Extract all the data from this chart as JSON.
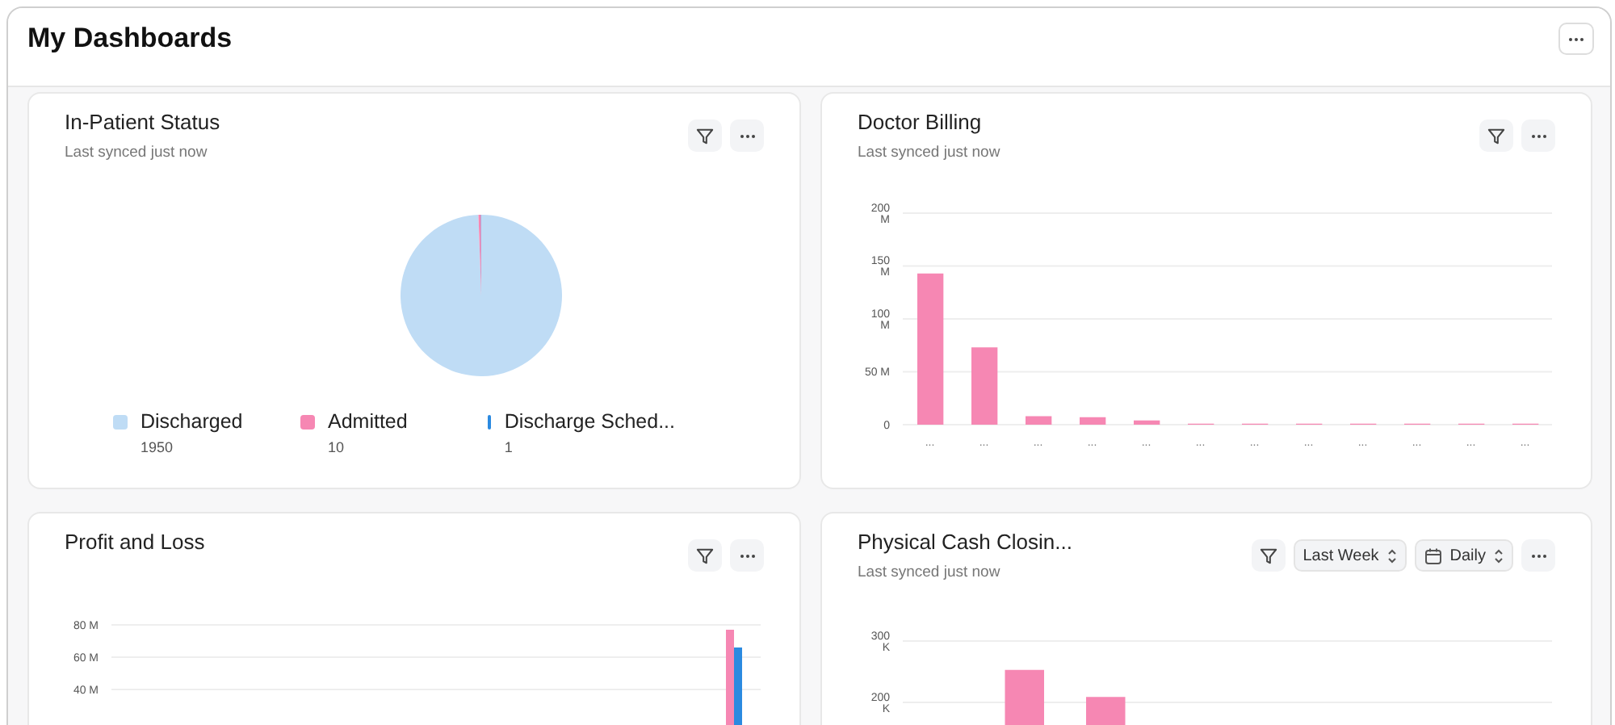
{
  "chart_data": [
    {
      "type": "pie",
      "title": "In-Patient Status",
      "subtitle": "Last synced just now",
      "annotations": [
        "My Dashboards"
      ],
      "categories": [
        "Discharged",
        "Admitted",
        "Discharge Sched..."
      ],
      "values": [
        1950,
        10,
        1
      ],
      "colors": [
        "#bfdcf5",
        "#f687b3",
        "#2b8ae0"
      ],
      "legend": "bottom",
      "data_labels": true
    },
    {
      "type": "bar",
      "title": "Doctor Billing",
      "subtitle": "Last synced just now",
      "categories": [
        "...",
        "...",
        "...",
        "...",
        "...",
        "...",
        "...",
        "...",
        "...",
        "...",
        "...",
        "..."
      ],
      "values": [
        143,
        73,
        8,
        7,
        4,
        1,
        1,
        1,
        1,
        1,
        1,
        1
      ],
      "color": "#f687b3",
      "ylim": [
        0,
        200
      ],
      "yticks": [
        {
          "value": 0,
          "label": "0"
        },
        {
          "value": 50,
          "label": "50 M"
        },
        {
          "value": 100,
          "label": "100 M"
        },
        {
          "value": 150,
          "label": "150 M"
        },
        {
          "value": 200,
          "label": "200 M"
        }
      ],
      "grid": "y"
    },
    {
      "type": "bar",
      "title": "Profit and Loss",
      "categories": [
        null,
        null,
        null,
        null,
        null,
        null,
        null,
        null,
        null,
        null,
        null,
        null
      ],
      "series": [
        {
          "color": "#f687b3",
          "values": [
            null,
            null,
            null,
            null,
            null,
            null,
            null,
            null,
            null,
            null,
            null,
            77
          ]
        },
        {
          "color": "#2b8ae0",
          "values": [
            null,
            null,
            null,
            null,
            null,
            null,
            null,
            null,
            null,
            null,
            null,
            66
          ]
        }
      ],
      "ylim": [
        0,
        80
      ],
      "yticks": [
        {
          "value": 40,
          "label": "40 M"
        },
        {
          "value": 60,
          "label": "60 M"
        },
        {
          "value": 80,
          "label": "80 M"
        }
      ],
      "grid": "y",
      "tick_labels": "y"
    },
    {
      "type": "bar",
      "title": "Physical Cash Closin...",
      "subtitle": "Last synced just now",
      "annotations": [
        "Last Week",
        "Daily"
      ],
      "categories": [
        null,
        null,
        null,
        null,
        null,
        null,
        null,
        null
      ],
      "values": [
        null,
        253,
        209,
        null,
        null,
        null,
        null,
        null
      ],
      "color": "#f687b3",
      "ylim": [
        0,
        300
      ],
      "yticks": [
        {
          "value": 200,
          "label": "200 K"
        },
        {
          "value": 300,
          "label": "300 K"
        }
      ],
      "grid": "y",
      "tick_labels": "y"
    }
  ]
}
